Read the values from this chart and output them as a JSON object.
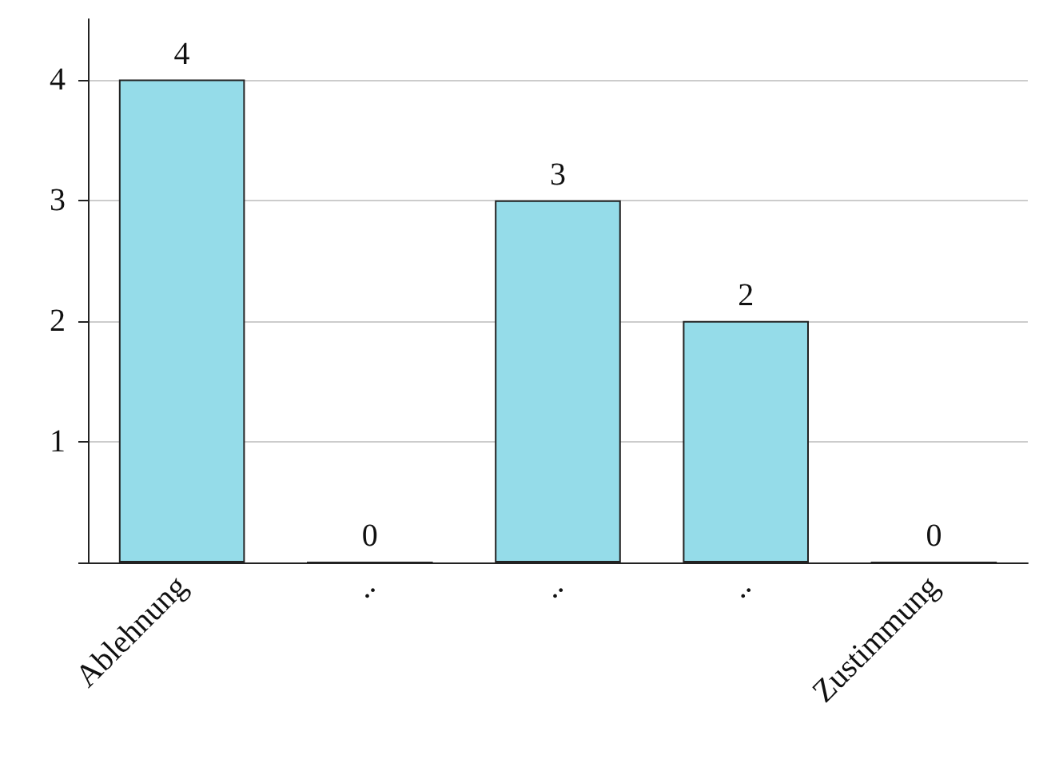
{
  "chart_data": {
    "type": "bar",
    "categories": [
      "Ablehnung",
      "..",
      "..",
      "..",
      "Zustimmung"
    ],
    "values": [
      4,
      0,
      3,
      2,
      0
    ],
    "color": "#95dce9",
    "ylim": [
      0,
      4.5
    ],
    "yticks": [
      {
        "value": 0,
        "label": null
      },
      1,
      2,
      3,
      4
    ],
    "grid": "y",
    "data_labels": true
  }
}
